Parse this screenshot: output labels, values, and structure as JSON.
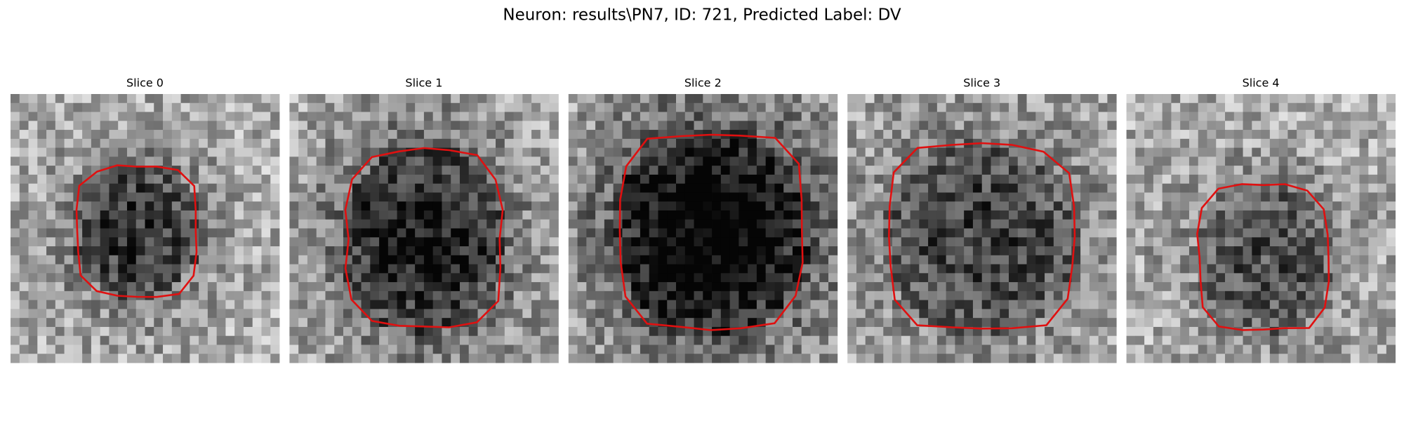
{
  "title": "Neuron: results\\PN7, ID: 721, Predicted Label: DV",
  "panels": [
    {
      "title": "Slice 0"
    },
    {
      "title": "Slice 1"
    },
    {
      "title": "Slice 2"
    },
    {
      "title": "Slice 3"
    },
    {
      "title": "Slice 4"
    }
  ]
}
